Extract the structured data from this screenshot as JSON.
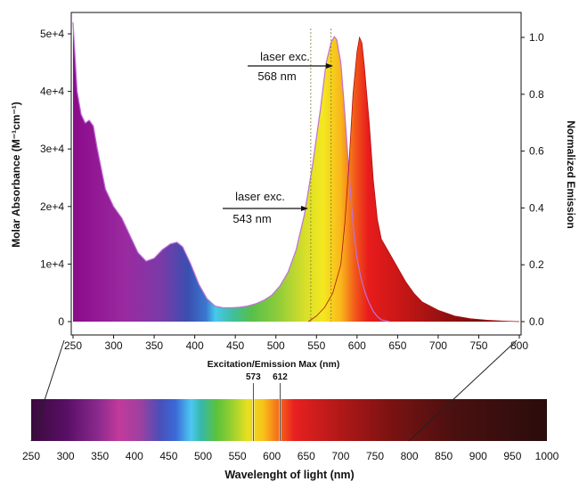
{
  "chart_data": [
    {
      "type": "area",
      "xlabel": "Excitation/Emission Max (nm)",
      "ylabel": "Molar Absorbance (M⁻¹cm⁻¹)",
      "y2label": "Normalized Emission",
      "xlim": [
        250,
        800
      ],
      "ylim": [
        0,
        52000
      ],
      "y2lim": [
        -0.05,
        1.1
      ],
      "x_ticks": [
        "250",
        "300",
        "350",
        "400",
        "450",
        "500",
        "550",
        "600",
        "650",
        "700",
        "750",
        "800"
      ],
      "y_ticks": [
        "0",
        "1e+4",
        "2e+4",
        "3e+4",
        "4e+4",
        "5e+4"
      ],
      "y2_ticks": [
        "0.0",
        "0.2",
        "0.4",
        "0.6",
        "0.8",
        "1.0"
      ],
      "grid": false,
      "series": [
        {
          "x": [
            250,
            255,
            260,
            265,
            270,
            275,
            280,
            290,
            300,
            310,
            320,
            330,
            340,
            350,
            360,
            370,
            378,
            385,
            395,
            405,
            415,
            425,
            435,
            445,
            455,
            465,
            475,
            485,
            495,
            505,
            515,
            525,
            535,
            545,
            555,
            562,
            568,
            572,
            575,
            580,
            585,
            590,
            595,
            600,
            605,
            610,
            615,
            620,
            625,
            630,
            640
          ],
          "values": [
            52000,
            40000,
            36000,
            34500,
            35000,
            34000,
            30000,
            23000,
            20000,
            18000,
            15000,
            12000,
            10500,
            11000,
            12500,
            13500,
            13800,
            13000,
            10000,
            6500,
            4000,
            2700,
            2400,
            2400,
            2500,
            2700,
            3100,
            3700,
            4600,
            6200,
            8600,
            12500,
            18500,
            27000,
            37000,
            45000,
            48500,
            49500,
            49000,
            45000,
            36000,
            26000,
            17000,
            11000,
            7500,
            5000,
            3200,
            1800,
            900,
            300,
            0
          ]
        },
        {
          "x": [
            540,
            550,
            560,
            570,
            580,
            585,
            590,
            595,
            600,
            603,
            606,
            609,
            612,
            615,
            620,
            625,
            630,
            640,
            650,
            660,
            670,
            680,
            700,
            720,
            740,
            760,
            780,
            800
          ],
          "values": [
            0.0,
            0.02,
            0.05,
            0.1,
            0.2,
            0.35,
            0.55,
            0.8,
            0.95,
            1.0,
            0.98,
            0.9,
            0.8,
            0.7,
            0.5,
            0.36,
            0.29,
            0.24,
            0.19,
            0.14,
            0.1,
            0.07,
            0.04,
            0.02,
            0.01,
            0.005,
            0.002,
            0.0
          ]
        }
      ],
      "annotations": [
        {
          "text_top": "laser exc.",
          "text_bottom": "568 nm",
          "x": 568
        },
        {
          "text_top": "laser exc.",
          "text_bottom": "543 nm",
          "x": 543
        }
      ]
    },
    {
      "type": "heatmap",
      "xlabel": "Wavelenght of light (nm)",
      "xlim": [
        250,
        1000
      ],
      "x_ticks": [
        "250",
        "300",
        "350",
        "400",
        "450",
        "500",
        "550",
        "600",
        "650",
        "700",
        "750",
        "800",
        "850",
        "900",
        "950",
        "1000"
      ],
      "markers": [
        {
          "label": "573",
          "x": 573
        },
        {
          "label": "612",
          "x": 612
        }
      ]
    }
  ]
}
